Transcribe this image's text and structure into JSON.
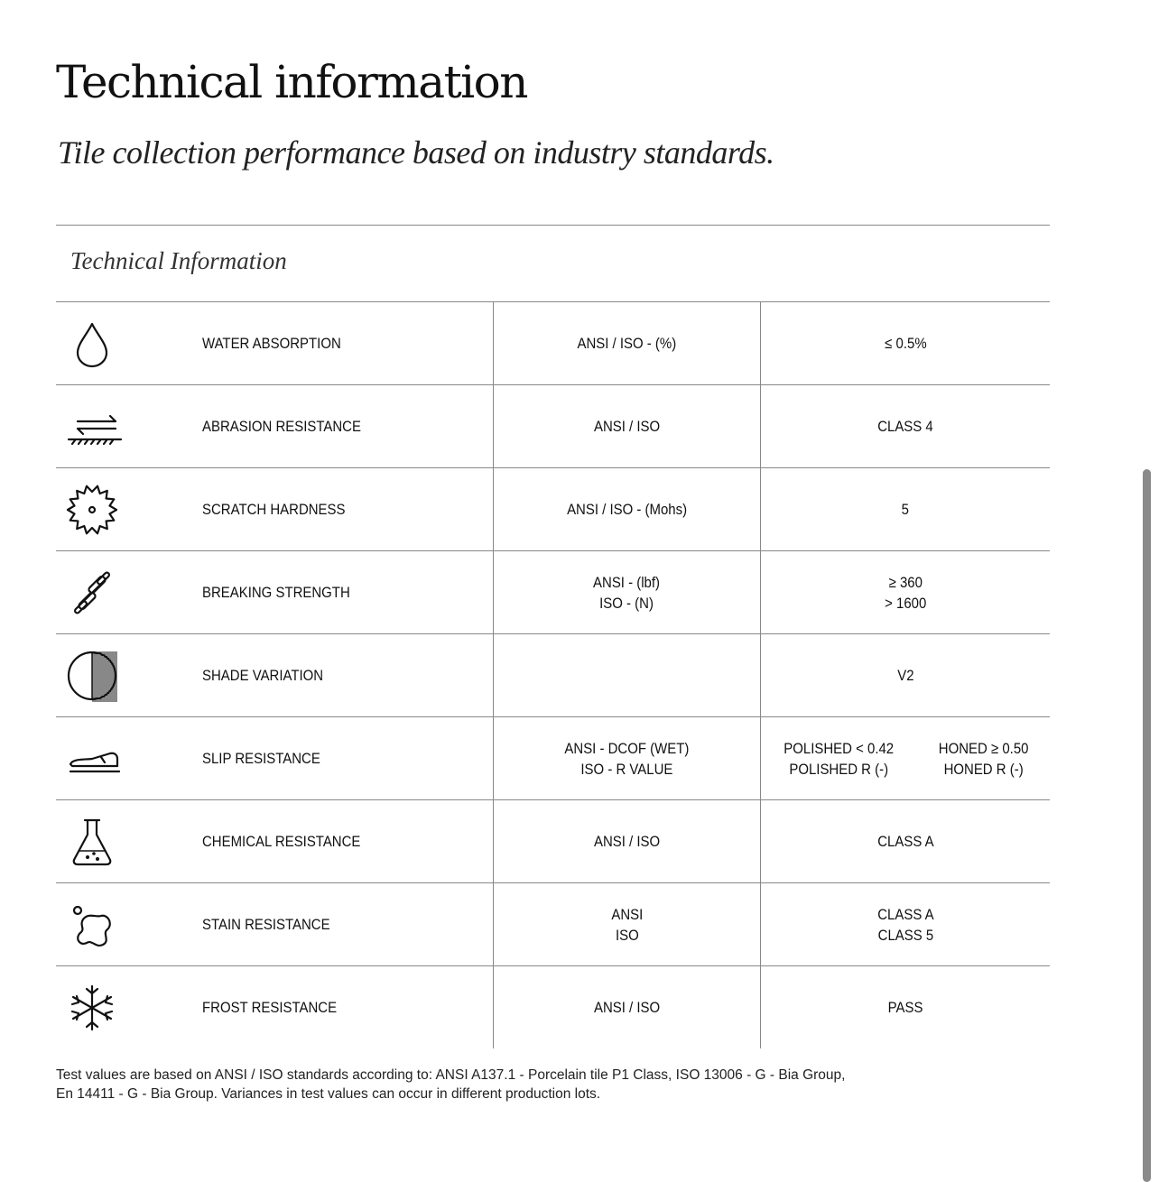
{
  "header": {
    "title": "Technical information",
    "subtitle": "Tile collection performance based on industry standards."
  },
  "section_title": "Technical Information",
  "rows": [
    {
      "icon": "water-drop-icon",
      "label": "WATER ABSORPTION",
      "standard": [
        "ANSI / ISO - (%)"
      ],
      "value": [
        "≤ 0.5%"
      ]
    },
    {
      "icon": "abrasion-icon",
      "label": "ABRASION RESISTANCE",
      "standard": [
        "ANSI / ISO"
      ],
      "value": [
        "CLASS 4"
      ]
    },
    {
      "icon": "gear-icon",
      "label": "SCRATCH HARDNESS",
      "standard": [
        "ANSI / ISO - (Mohs)"
      ],
      "value": [
        "5"
      ]
    },
    {
      "icon": "dumbbell-icon",
      "label": "BREAKING STRENGTH",
      "standard": [
        "ANSI  - (lbf)",
        "ISO - (N)"
      ],
      "value": [
        "≥ 360",
        "> 1600"
      ]
    },
    {
      "icon": "half-circle-icon",
      "label": "SHADE VARIATION",
      "standard": [],
      "value": [
        "V2"
      ]
    },
    {
      "icon": "shoe-icon",
      "label": "SLIP RESISTANCE",
      "standard": [
        "ANSI - DCOF (WET)",
        "ISO - R VALUE"
      ],
      "value_columns": [
        [
          "POLISHED < 0.42",
          "POLISHED R (-)"
        ],
        [
          "HONED ≥ 0.50",
          "HONED R (-)"
        ]
      ]
    },
    {
      "icon": "flask-icon",
      "label": "CHEMICAL RESISTANCE",
      "standard": [
        "ANSI / ISO"
      ],
      "value": [
        "CLASS A"
      ]
    },
    {
      "icon": "stain-icon",
      "label": "STAIN RESISTANCE",
      "standard": [
        "ANSI",
        "ISO"
      ],
      "value": [
        "CLASS A",
        "CLASS 5"
      ]
    },
    {
      "icon": "snowflake-icon",
      "label": "FROST RESISTANCE",
      "standard": [
        "ANSI / ISO"
      ],
      "value": [
        "PASS"
      ]
    }
  ],
  "footnote": [
    "Test values are based on ANSI / ISO standards according to: ANSI A137.1 - Porcelain tile P1 Class, ISO 13006 - G - Bia Group,",
    "En 14411 - G - Bia Group. Variances in test values can occur in different production lots."
  ]
}
